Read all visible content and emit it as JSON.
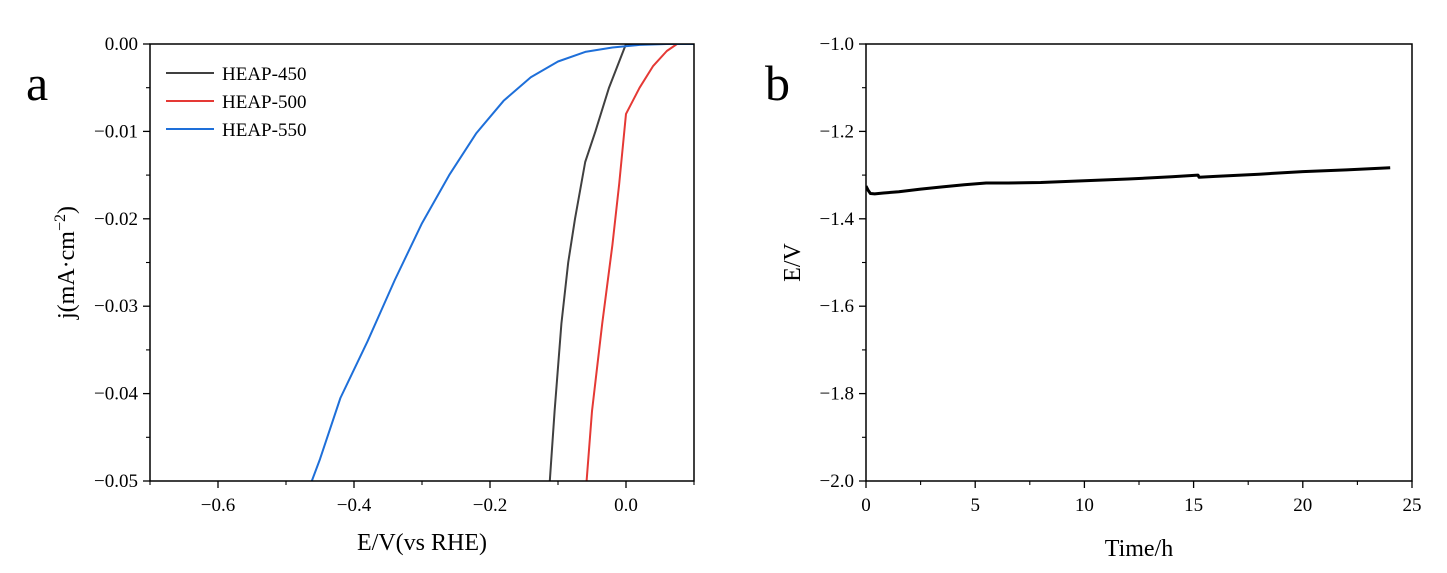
{
  "chart_data": [
    {
      "panel_label": "a",
      "type": "line",
      "xlabel": "E/V(vs RHE)",
      "ylabel_main": "j(mA·cm",
      "ylabel_sup": "−2",
      "ylabel_close": ")",
      "xlim": [
        -0.7,
        0.1
      ],
      "ylim": [
        -0.05,
        0.0
      ],
      "xticks": [
        -0.6,
        -0.4,
        -0.2,
        0.0
      ],
      "xtick_labels": [
        "−0.6",
        "−0.4",
        "−0.2",
        "0.0"
      ],
      "yticks": [
        0.0,
        -0.01,
        -0.02,
        -0.03,
        -0.04,
        -0.05
      ],
      "ytick_labels": [
        "0.00",
        "−0.01",
        "−0.02",
        "−0.03",
        "−0.04",
        "−0.05"
      ],
      "legend_position": "top-left",
      "series": [
        {
          "name": "HEAP-450",
          "color": "#404040",
          "x": [
            -0.112,
            -0.105,
            -0.095,
            -0.085,
            -0.075,
            -0.06,
            -0.045,
            -0.025,
            -0.01,
            0.0,
            0.005,
            0.1
          ],
          "y": [
            -0.05,
            -0.042,
            -0.032,
            -0.025,
            -0.02,
            -0.0135,
            -0.01,
            -0.005,
            -0.002,
            0.0,
            0.0,
            0.0
          ]
        },
        {
          "name": "HEAP-500",
          "color": "#e53935",
          "x": [
            -0.058,
            -0.05,
            -0.035,
            -0.02,
            -0.01,
            0.0,
            0.02,
            0.04,
            0.06,
            0.075,
            0.1
          ],
          "y": [
            -0.05,
            -0.042,
            -0.032,
            -0.023,
            -0.016,
            -0.008,
            -0.005,
            -0.0025,
            -0.0008,
            0.0,
            0.0
          ]
        },
        {
          "name": "HEAP-550",
          "color": "#1e6fd9",
          "x": [
            -0.462,
            -0.45,
            -0.42,
            -0.38,
            -0.34,
            -0.3,
            -0.26,
            -0.22,
            -0.18,
            -0.14,
            -0.1,
            -0.06,
            -0.02,
            0.02,
            0.06,
            0.1
          ],
          "y": [
            -0.05,
            -0.0475,
            -0.0405,
            -0.034,
            -0.027,
            -0.0205,
            -0.015,
            -0.0102,
            -0.0065,
            -0.0038,
            -0.002,
            -0.0009,
            -0.0004,
            -0.0001,
            0.0,
            0.0
          ]
        }
      ]
    },
    {
      "panel_label": "b",
      "type": "line",
      "xlabel": "Time/h",
      "ylabel": "E/V",
      "xlim": [
        0,
        25
      ],
      "ylim": [
        -2.0,
        -1.0
      ],
      "xticks": [
        0,
        5,
        10,
        15,
        20,
        25
      ],
      "xtick_labels": [
        "0",
        "5",
        "10",
        "15",
        "20",
        "25"
      ],
      "yticks": [
        -1.0,
        -1.2,
        -1.4,
        -1.6,
        -1.8,
        -2.0
      ],
      "ytick_labels": [
        "−1.0",
        "−1.2",
        "−1.4",
        "−1.6",
        "−1.8",
        "−2.0"
      ],
      "series": [
        {
          "color": "#000000",
          "x": [
            0.0,
            0.1,
            0.2,
            0.4,
            0.8,
            1.5,
            2.5,
            3.5,
            4.5,
            5.5,
            6.5,
            8.0,
            10.0,
            12.0,
            14.0,
            15.2,
            15.25,
            16.0,
            18.0,
            20.0,
            22.0,
            24.0
          ],
          "y": [
            -1.325,
            -1.335,
            -1.342,
            -1.343,
            -1.341,
            -1.338,
            -1.332,
            -1.327,
            -1.322,
            -1.318,
            -1.318,
            -1.317,
            -1.313,
            -1.309,
            -1.304,
            -1.3,
            -1.305,
            -1.303,
            -1.298,
            -1.292,
            -1.288,
            -1.283
          ]
        }
      ]
    }
  ]
}
